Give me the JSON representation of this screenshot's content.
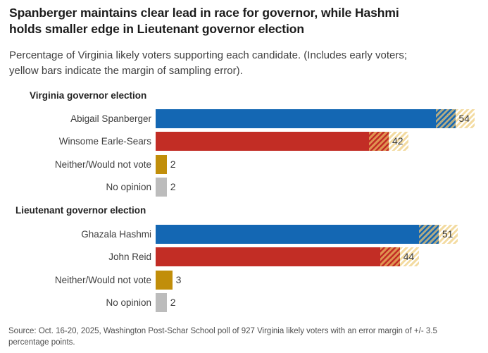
{
  "header": {
    "title": "Spanberger maintains clear lead in race for governor, while Hashmi\nholds smaller edge in Lieutenant governor election",
    "subtitle": "Percentage of Virginia likely voters supporting each candidate. (Includes early voters;\nyellow bars indicate the margin of sampling error)."
  },
  "source": "Source: Oct. 16-20, 2025, Washington Post-Schar School poll of 927 Virginia likely voters with an error margin of +/- 3.5\npercentage points.",
  "colors": {
    "bar_blue": "#1467b3",
    "bar_red": "#c22d25",
    "bar_gold": "#c18e0a",
    "bar_gray": "#bcbcbc",
    "moe_fill": "#f3dba1",
    "moe_on_blue": "#b3ab84",
    "moe_on_red": "#e09350",
    "value_text": "#3b3b3b"
  },
  "chart_data": {
    "type": "bar",
    "orientation": "horizontal",
    "unit": "percent of likely voters",
    "xlim": [
      0,
      60
    ],
    "margin_of_error_pp": 3.5,
    "grid": false,
    "legend": "none",
    "sections": [
      {
        "title": "Virginia governor election",
        "rows": [
          {
            "label": "Abigail Spanberger",
            "value": 54,
            "color": "blue",
            "moe": true
          },
          {
            "label": "Winsome Earle-Sears",
            "value": 42,
            "color": "red",
            "moe": true
          },
          {
            "label": "Neither/Would not vote",
            "value": 2,
            "color": "gold",
            "moe": false
          },
          {
            "label": "No opinion",
            "value": 2,
            "color": "gray",
            "moe": false
          }
        ]
      },
      {
        "title": "Lieutenant governor election",
        "rows": [
          {
            "label": "Ghazala Hashmi",
            "value": 51,
            "color": "blue",
            "moe": true
          },
          {
            "label": "John Reid",
            "value": 44,
            "color": "red",
            "moe": true
          },
          {
            "label": "Neither/Would not vote",
            "value": 3,
            "color": "gold",
            "moe": false
          },
          {
            "label": "No opinion",
            "value": 2,
            "color": "gray",
            "moe": false
          }
        ]
      }
    ]
  }
}
